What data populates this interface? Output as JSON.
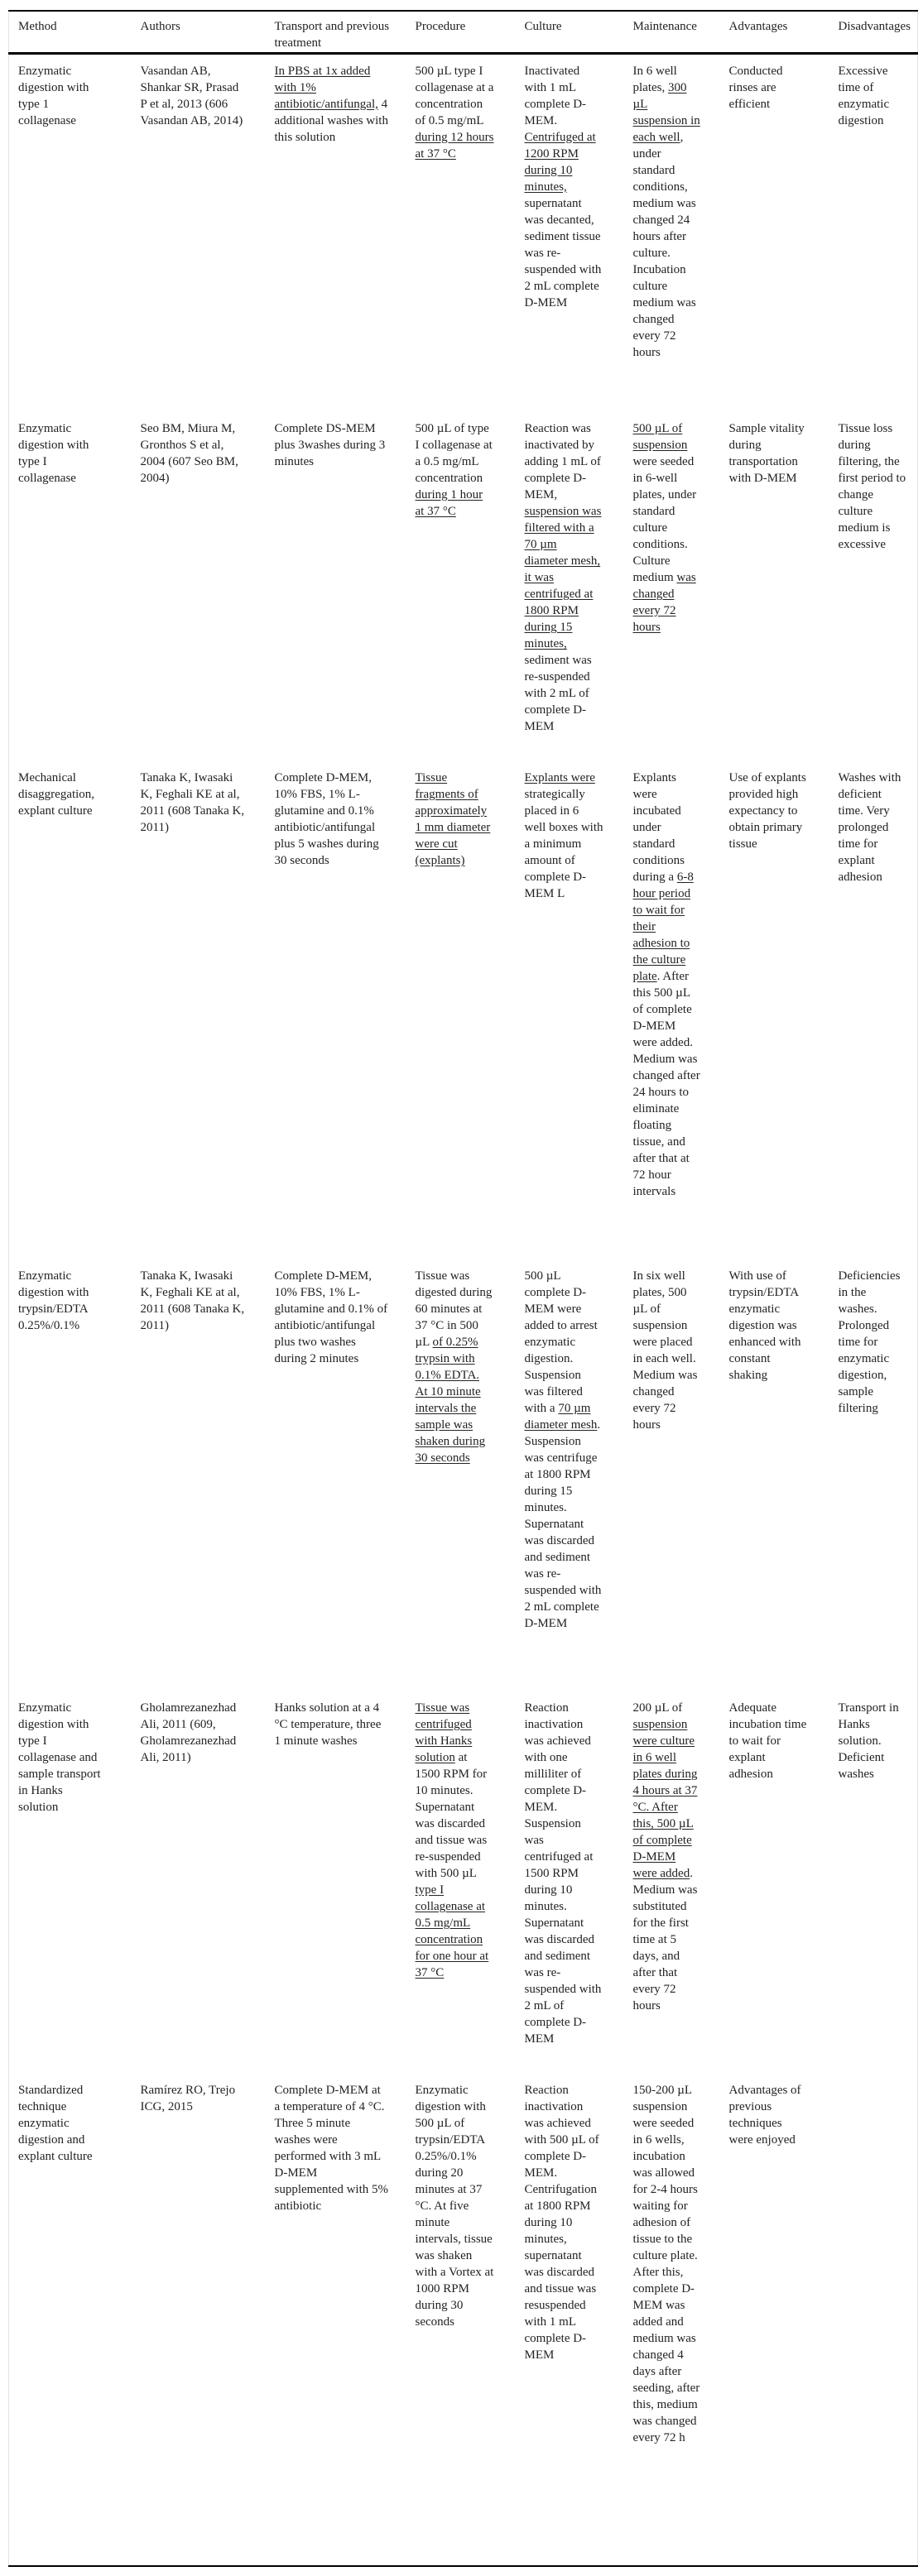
{
  "table": {
    "headers": [
      "Method",
      "Authors",
      "Transport and previous treatment",
      "Procedure",
      "Culture",
      "Maintenance",
      "Advantages",
      "Disadvantages"
    ],
    "rows": [
      [
        [
          {
            "t": "Enzymatic digestion with type 1 collagenase"
          }
        ],
        [
          {
            "t": "Vasandan AB, Shankar SR, Prasad P et al, 2013 (606 Vasandan AB, 2014)"
          }
        ],
        [
          {
            "t": "In PBS at 1x added with 1% antibiotic/antifungal,",
            "u": true
          },
          {
            "t": " 4 additional washes with this solution"
          }
        ],
        [
          {
            "t": "500 µL type I collagenase at a concentration of 0.5 mg/mL "
          },
          {
            "t": "during 12 hours at 37 °C",
            "u": true
          }
        ],
        [
          {
            "t": "Inactivated with 1 mL complete D-MEM. "
          },
          {
            "t": "Centrifuged at 1200 RPM during 10 minutes,",
            "u": true
          },
          {
            "t": " supernatant was decanted, sediment tissue was re-suspended with 2 mL complete D-MEM"
          }
        ],
        [
          {
            "t": "In 6 well plates, "
          },
          {
            "t": "300 µL suspension in each well",
            "u": true
          },
          {
            "t": ", under standard conditions, medium was changed 24 hours after culture. Incubation culture medium was changed every 72 hours"
          }
        ],
        [
          {
            "t": "Conducted rinses are efficient"
          }
        ],
        [
          {
            "t": "Excessive time of enzymatic digestion"
          }
        ]
      ],
      [
        [
          {
            "t": "Enzymatic digestion with type I collagenase"
          }
        ],
        [
          {
            "t": "Seo BM, Miura M, Gronthos S et al, 2004 (607 Seo BM, 2004)"
          }
        ],
        [
          {
            "t": "Complete DS-MEM plus 3washes during 3 minutes"
          }
        ],
        [
          {
            "t": "500 µL of type I collagenase at a 0.5 mg/mL concentration "
          },
          {
            "t": "during 1 hour at 37 °C",
            "u": true
          }
        ],
        [
          {
            "t": "Reaction was inactivated by adding 1 mL of complete D-MEM, "
          },
          {
            "t": "suspension was filtered with a 70 µm diameter mesh, it was centrifuged at 1800 RPM during 15 minutes,",
            "u": true
          },
          {
            "t": " sediment was re-suspended with 2 mL of complete D-MEM"
          }
        ],
        [
          {
            "t": "500 µL of suspension",
            "u": true
          },
          {
            "t": " were seeded in 6-well plates, under standard culture conditions. Culture medium "
          },
          {
            "t": "was changed every 72 hours",
            "u": true
          }
        ],
        [
          {
            "t": "Sample vitality during transportation with D-MEM"
          }
        ],
        [
          {
            "t": "Tissue loss during filtering, the first period to change culture medium is excessive"
          }
        ]
      ],
      [
        [
          {
            "t": "Mechanical disaggregation, explant culture"
          }
        ],
        [
          {
            "t": "Tanaka K, Iwasaki K, Feghali KE at al, 2011 (608 Tanaka K, 2011)"
          }
        ],
        [
          {
            "t": "Complete D-MEM, 10% FBS, 1% L-glutamine and 0.1% antibiotic/antifungal plus 5 washes during 30 seconds"
          }
        ],
        [
          {
            "t": "Tissue fragments of approximately 1 mm diameter were cut (explants)",
            "u": true
          }
        ],
        [
          {
            "t": "Explants were",
            "u": true
          },
          {
            "t": " strategically placed in 6 well boxes with a minimum amount of complete D-MEM L"
          }
        ],
        [
          {
            "t": "Explants were incubated under standard conditions during a "
          },
          {
            "t": "6-8 hour period to wait for their adhesion to the culture plate",
            "u": true
          },
          {
            "t": ". After this 500 µL of complete D-MEM were added. Medium was changed after 24 hours to eliminate floating tissue, and after that at 72 hour intervals"
          }
        ],
        [
          {
            "t": "Use of explants provided high expectancy to obtain primary tissue"
          }
        ],
        [
          {
            "t": "Washes with deficient time. Very prolonged time for explant adhesion"
          }
        ]
      ],
      [
        [
          {
            "t": "Enzymatic digestion with trypsin/EDTA 0.25%/0.1%"
          }
        ],
        [
          {
            "t": "Tanaka K, Iwasaki K, Feghali KE at al, 2011 (608 Tanaka K, 2011)"
          }
        ],
        [
          {
            "t": "Complete D-MEM, 10% FBS, 1% L-glutamine and 0.1% of antibiotic/antifungal plus two washes during 2 minutes"
          }
        ],
        [
          {
            "t": "Tissue was digested during 60 minutes at 37 °C in 500 µL "
          },
          {
            "t": "of 0.25% trypsin with 0.1% EDTA. At 10 minute intervals the sample was shaken during 30 seconds",
            "u": true
          }
        ],
        [
          {
            "t": "500 µL complete D-MEM were added to arrest enzymatic digestion. Suspension was filtered with a "
          },
          {
            "t": "70 µm diameter mesh",
            "u": true
          },
          {
            "t": ". Suspension was centrifuge at 1800 RPM during 15 minutes. Supernatant was discarded and sediment was re-suspended with 2 mL complete D-MEM"
          }
        ],
        [
          {
            "t": "In six well plates, 500 µL of suspension were placed in each well. Medium was changed every 72 hours"
          }
        ],
        [
          {
            "t": "With use of trypsin/EDTA enzymatic digestion was enhanced with constant shaking"
          }
        ],
        [
          {
            "t": "Deficiencies in the washes. Prolonged time for enzymatic digestion, sample filtering"
          }
        ]
      ],
      [
        [
          {
            "t": "Enzymatic digestion with type I collagenase and sample transport in Hanks solution"
          }
        ],
        [
          {
            "t": "Gholamrezanezhad Ali, 2011 (609, Gholamrezanezhad Ali, 2011)"
          }
        ],
        [
          {
            "t": "Hanks solution at a 4 °C temperature, three 1 minute washes"
          }
        ],
        [
          {
            "t": "Tissue was centrifuged with Hanks solution",
            "u": true
          },
          {
            "t": " at 1500 RPM for 10 minutes. Supernatant was discarded and tissue was re-suspended with 500 µL "
          },
          {
            "t": "type I collagenase at 0.5 mg/mL concentration for one hour at 37 °C",
            "u": true
          }
        ],
        [
          {
            "t": "Reaction inactivation was achieved with one milliliter of complete D-MEM. Suspension was centrifuged at 1500 RPM during 10 minutes. Supernatant was discarded and sediment was re-suspended with 2 mL of complete D-MEM"
          }
        ],
        [
          {
            "t": "200 µL of "
          },
          {
            "t": "suspension were culture in 6 well plates during 4 hours at 37 °C. After this, 500 µL of complete D-MEM were added",
            "u": true
          },
          {
            "t": ". Medium was substituted for the first time at 5 days, and after that every 72 hours"
          }
        ],
        [
          {
            "t": "Adequate incubation time to wait for explant adhesion"
          }
        ],
        [
          {
            "t": "Transport in Hanks solution. Deficient washes"
          }
        ]
      ],
      [
        [
          {
            "t": "Standardized technique enzymatic digestion and explant culture"
          }
        ],
        [
          {
            "t": "Ramírez RO, Trejo ICG, 2015"
          }
        ],
        [
          {
            "t": "Complete D-MEM at a temperature of 4 °C. Three 5 minute washes were performed with 3 mL D-MEM supplemented with 5% antibiotic"
          }
        ],
        [
          {
            "t": "Enzymatic digestion with 500 µL of trypsin/EDTA 0.25%/0.1% during 20 minutes at 37 °C. At five minute intervals, tissue was shaken with a Vortex at 1000 RPM during 30 seconds"
          }
        ],
        [
          {
            "t": "Reaction inactivation was achieved with 500 µL of complete D-MEM. Centrifugation at 1800 RPM during 10 minutes, supernatant was discarded and tissue was resuspended with 1 mL complete D-MEM"
          }
        ],
        [
          {
            "t": "150-200 µL suspension were seeded in 6 wells, incubation was allowed for 2-4 hours waiting for adhesion of tissue to the culture plate. After this, complete D-MEM was added and medium was changed 4 days after seeding, after this, medium was changed every 72 h"
          }
        ],
        [
          {
            "t": "Advantages of previous techniques were enjoyed"
          }
        ],
        [
          {
            "t": ""
          }
        ]
      ]
    ]
  }
}
